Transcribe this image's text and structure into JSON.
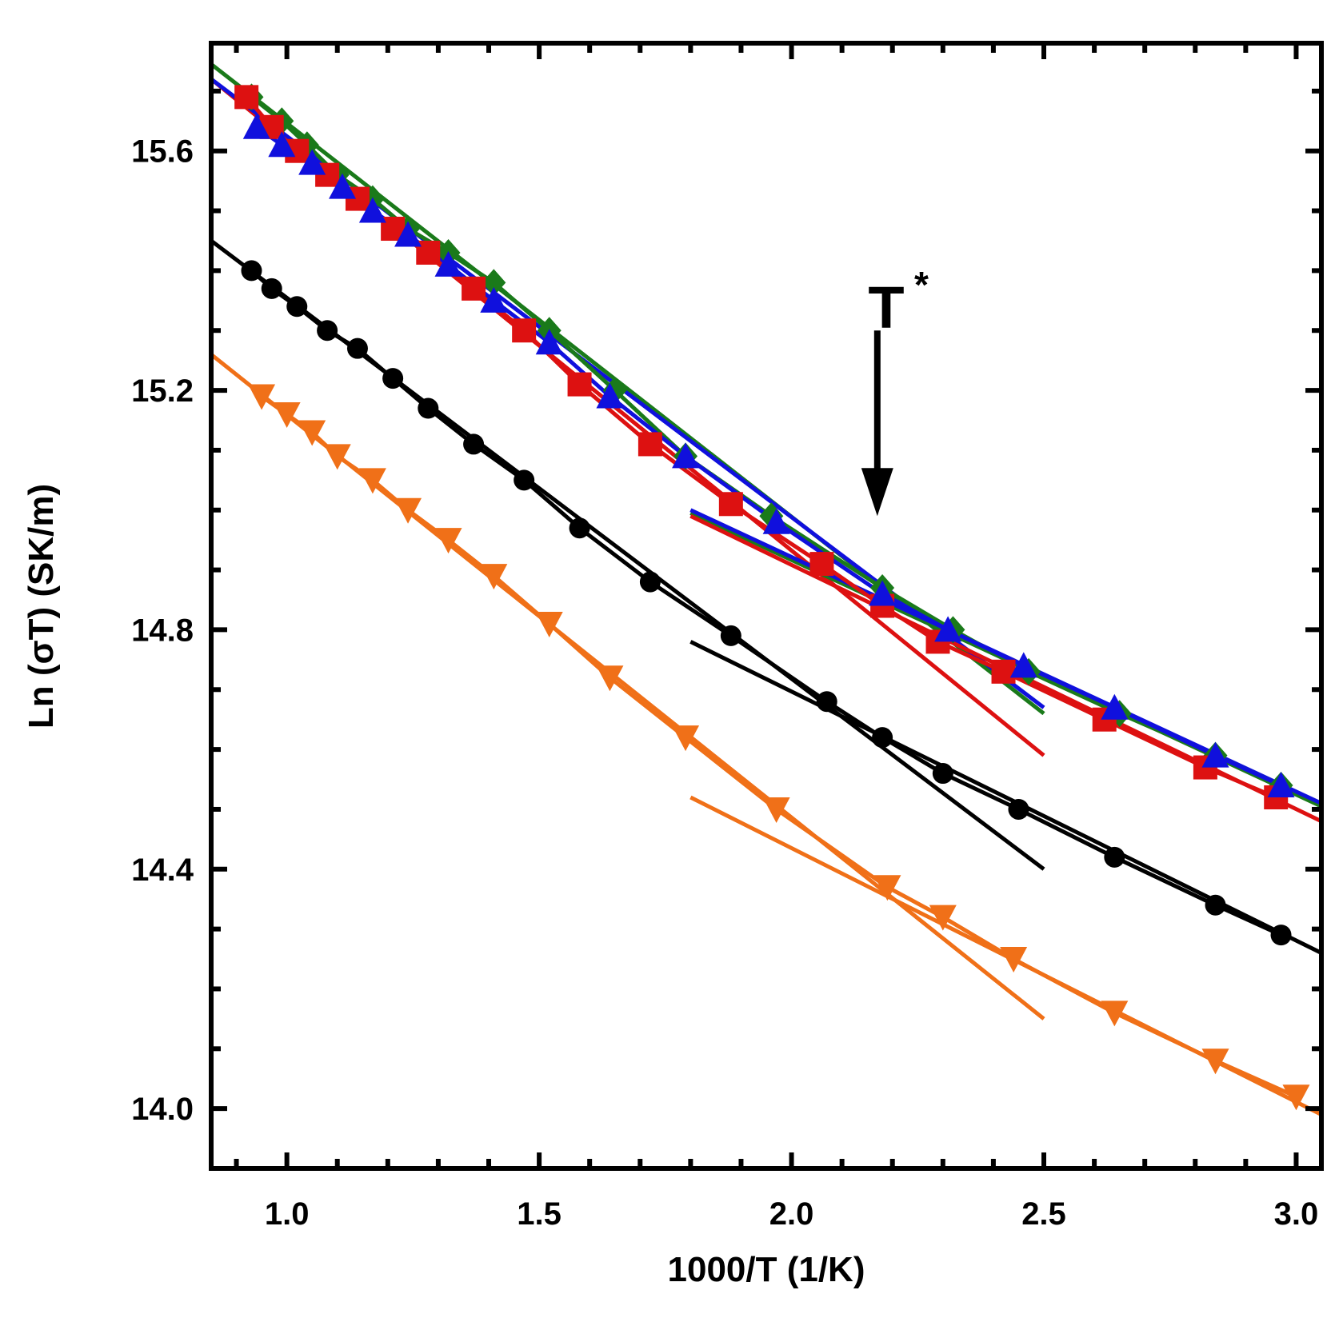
{
  "chart_data": {
    "type": "line",
    "title": "",
    "xlabel": "1000/T (1/K)",
    "ylabel": "Ln (σT) (SK/m)",
    "xlim": [
      0.85,
      3.05
    ],
    "ylim": [
      13.9,
      15.78
    ],
    "xticks": [
      1.0,
      1.5,
      2.0,
      2.5,
      3.0
    ],
    "xtick_labels": [
      "1.0",
      "1.5",
      "2.0",
      "2.5",
      "3.0"
    ],
    "yticks": [
      14.0,
      14.4,
      14.8,
      15.2,
      15.6
    ],
    "ytick_labels": [
      "14.0",
      "14.4",
      "14.8",
      "15.2",
      "15.6"
    ],
    "grid": false,
    "annotations": [
      {
        "text": "T",
        "superscript": "*",
        "x": 2.17,
        "arrow_from_y": 15.3,
        "arrow_to_y": 14.99
      }
    ],
    "series": [
      {
        "name": "green-diamonds",
        "color": "#1a7a1a",
        "marker": "diamond",
        "x": [
          0.93,
          0.99,
          1.04,
          1.1,
          1.17,
          1.24,
          1.32,
          1.41,
          1.52,
          1.65,
          1.79,
          1.96,
          2.18,
          2.32,
          2.47,
          2.65,
          2.84,
          2.97
        ],
        "y": [
          15.69,
          15.65,
          15.61,
          15.56,
          15.52,
          15.47,
          15.43,
          15.38,
          15.3,
          15.2,
          15.09,
          14.99,
          14.87,
          14.8,
          14.73,
          14.66,
          14.59,
          14.54
        ]
      },
      {
        "name": "red-squares",
        "color": "#dd1111",
        "marker": "square",
        "x": [
          0.92,
          0.97,
          1.02,
          1.08,
          1.14,
          1.21,
          1.28,
          1.37,
          1.47,
          1.58,
          1.72,
          1.88,
          2.06,
          2.18,
          2.29,
          2.42,
          2.62,
          2.82,
          2.96
        ],
        "y": [
          15.69,
          15.64,
          15.6,
          15.56,
          15.52,
          15.47,
          15.43,
          15.37,
          15.3,
          15.21,
          15.11,
          15.01,
          14.91,
          14.84,
          14.78,
          14.73,
          14.65,
          14.57,
          14.52
        ]
      },
      {
        "name": "blue-triangles",
        "color": "#1010dd",
        "marker": "triangle-up",
        "x": [
          0.94,
          0.99,
          1.05,
          1.11,
          1.17,
          1.24,
          1.32,
          1.41,
          1.52,
          1.64,
          1.79,
          1.97,
          2.18,
          2.31,
          2.46,
          2.64,
          2.84,
          2.97
        ],
        "y": [
          15.64,
          15.61,
          15.58,
          15.54,
          15.5,
          15.46,
          15.41,
          15.35,
          15.28,
          15.19,
          15.09,
          14.98,
          14.86,
          14.8,
          14.74,
          14.67,
          14.59,
          14.54
        ]
      },
      {
        "name": "black-circles",
        "color": "#000000",
        "marker": "circle",
        "x": [
          0.93,
          0.97,
          1.02,
          1.08,
          1.14,
          1.21,
          1.28,
          1.37,
          1.47,
          1.58,
          1.72,
          1.88,
          2.07,
          2.18,
          2.3,
          2.45,
          2.64,
          2.84,
          2.97
        ],
        "y": [
          15.4,
          15.37,
          15.34,
          15.3,
          15.27,
          15.22,
          15.17,
          15.11,
          15.05,
          14.97,
          14.88,
          14.79,
          14.68,
          14.62,
          14.56,
          14.5,
          14.42,
          14.34,
          14.29
        ]
      },
      {
        "name": "orange-triangles-down",
        "color": "#f07018",
        "marker": "triangle-down",
        "x": [
          0.95,
          1.0,
          1.05,
          1.1,
          1.17,
          1.24,
          1.32,
          1.41,
          1.52,
          1.64,
          1.79,
          1.97,
          2.19,
          2.3,
          2.44,
          2.64,
          2.84,
          3.0
        ],
        "y": [
          15.19,
          15.16,
          15.13,
          15.09,
          15.05,
          15.0,
          14.95,
          14.89,
          14.81,
          14.72,
          14.62,
          14.5,
          14.37,
          14.32,
          14.25,
          14.16,
          14.08,
          14.02
        ]
      }
    ],
    "fit_lines": [
      {
        "color": "#1a7a1a",
        "x": [
          0.85,
          2.5
        ],
        "y": [
          15.745,
          14.66
        ]
      },
      {
        "color": "#dd1111",
        "x": [
          0.85,
          2.5
        ],
        "y": [
          15.72,
          14.59
        ]
      },
      {
        "color": "#1010dd",
        "x": [
          0.85,
          2.5
        ],
        "y": [
          15.72,
          14.67
        ]
      },
      {
        "color": "#000000",
        "x": [
          0.85,
          2.5
        ],
        "y": [
          15.45,
          14.4
        ]
      },
      {
        "color": "#f07018",
        "x": [
          0.85,
          2.5
        ],
        "y": [
          15.26,
          14.15
        ]
      },
      {
        "color": "#1a7a1a",
        "x": [
          1.8,
          3.05
        ],
        "y": [
          14.995,
          14.505
        ]
      },
      {
        "color": "#dd1111",
        "x": [
          1.8,
          3.05
        ],
        "y": [
          14.99,
          14.48
        ]
      },
      {
        "color": "#1010dd",
        "x": [
          1.8,
          3.05
        ],
        "y": [
          15.0,
          14.51
        ]
      },
      {
        "color": "#000000",
        "x": [
          1.8,
          3.05
        ],
        "y": [
          14.78,
          14.26
        ]
      },
      {
        "color": "#f07018",
        "x": [
          1.8,
          3.05
        ],
        "y": [
          14.52,
          13.99
        ]
      }
    ]
  }
}
